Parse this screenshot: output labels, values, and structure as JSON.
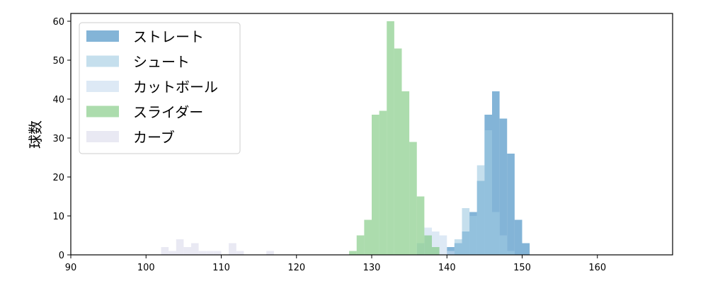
{
  "chart_data": {
    "type": "histogram",
    "title": "",
    "xlabel": "",
    "ylabel": "球数",
    "xlim": [
      90,
      170
    ],
    "ylim": [
      0,
      62
    ],
    "x_ticks": [
      90,
      100,
      110,
      120,
      130,
      140,
      150,
      160
    ],
    "y_ticks": [
      0,
      10,
      20,
      30,
      40,
      50,
      60
    ],
    "bin_width": 1,
    "grid": false,
    "legend_position": "top-left",
    "series": [
      {
        "name": "ストレート",
        "color": "#3182bd",
        "bins_start": 140,
        "values": [
          2,
          3,
          6,
          11,
          19,
          36,
          42,
          35,
          26,
          9,
          3
        ]
      },
      {
        "name": "シュート",
        "color": "#9ecae1",
        "bins_start": 141,
        "values": [
          4,
          12,
          10,
          23,
          32,
          11,
          5,
          1
        ]
      },
      {
        "name": "カットボール",
        "color": "#c6dbef",
        "bins_start": 136,
        "values": [
          3,
          7,
          6,
          5,
          1
        ]
      },
      {
        "name": "スライダー",
        "color": "#74c476",
        "bins_start": 127,
        "values": [
          1,
          5,
          9,
          36,
          37,
          60,
          53,
          42,
          29,
          15,
          5,
          2
        ]
      },
      {
        "name": "カーブ",
        "color": "#dadaeb",
        "bins_start": 102,
        "values": [
          2,
          1,
          4,
          2,
          3,
          1,
          1,
          1,
          0,
          3,
          1,
          0,
          0,
          0,
          1
        ]
      }
    ]
  }
}
